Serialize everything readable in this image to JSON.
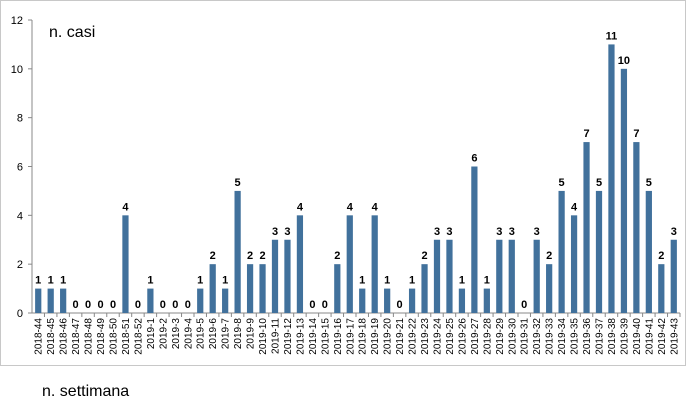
{
  "chart_data": {
    "type": "bar",
    "title": "",
    "ylabel": "n. casi",
    "xlabel": "n. settimana",
    "ylim": [
      0,
      12
    ],
    "yticks": [
      0,
      2,
      4,
      6,
      8,
      10,
      12
    ],
    "grid": false,
    "legend": "none",
    "bar_color": "#41719C",
    "categories": [
      "2018-44",
      "2018-45",
      "2018-46",
      "2018-47",
      "2018-48",
      "2018-49",
      "2018-50",
      "2018-51",
      "2018-52",
      "2019-1",
      "2019-2",
      "2019-3",
      "2019-4",
      "2019-5",
      "2019-6",
      "2019-7",
      "2019-8",
      "2019-9",
      "2019-10",
      "2019-11",
      "2019-12",
      "2019-13",
      "2019-14",
      "2019-15",
      "2019-16",
      "2019-17",
      "2019-18",
      "2019-19",
      "2019-20",
      "2019-21",
      "2019-22",
      "2019-23",
      "2019-24",
      "2019-25",
      "2019-26",
      "2019-27",
      "2019-28",
      "2019-29",
      "2019-30",
      "2019-31",
      "2019-32",
      "2019-33",
      "2019-34",
      "2019-35",
      "2019-36",
      "2019-37",
      "2019-38",
      "2019-39",
      "2019-40",
      "2019-41",
      "2019-42",
      "2019-43"
    ],
    "values": [
      1,
      1,
      1,
      0,
      0,
      0,
      0,
      4,
      0,
      1,
      0,
      0,
      0,
      1,
      2,
      1,
      5,
      2,
      2,
      3,
      3,
      4,
      0,
      0,
      2,
      4,
      1,
      4,
      1,
      0,
      1,
      2,
      3,
      3,
      1,
      6,
      1,
      3,
      3,
      0,
      3,
      2,
      5,
      4,
      7,
      5,
      11,
      10,
      7,
      5,
      2,
      3
    ]
  }
}
